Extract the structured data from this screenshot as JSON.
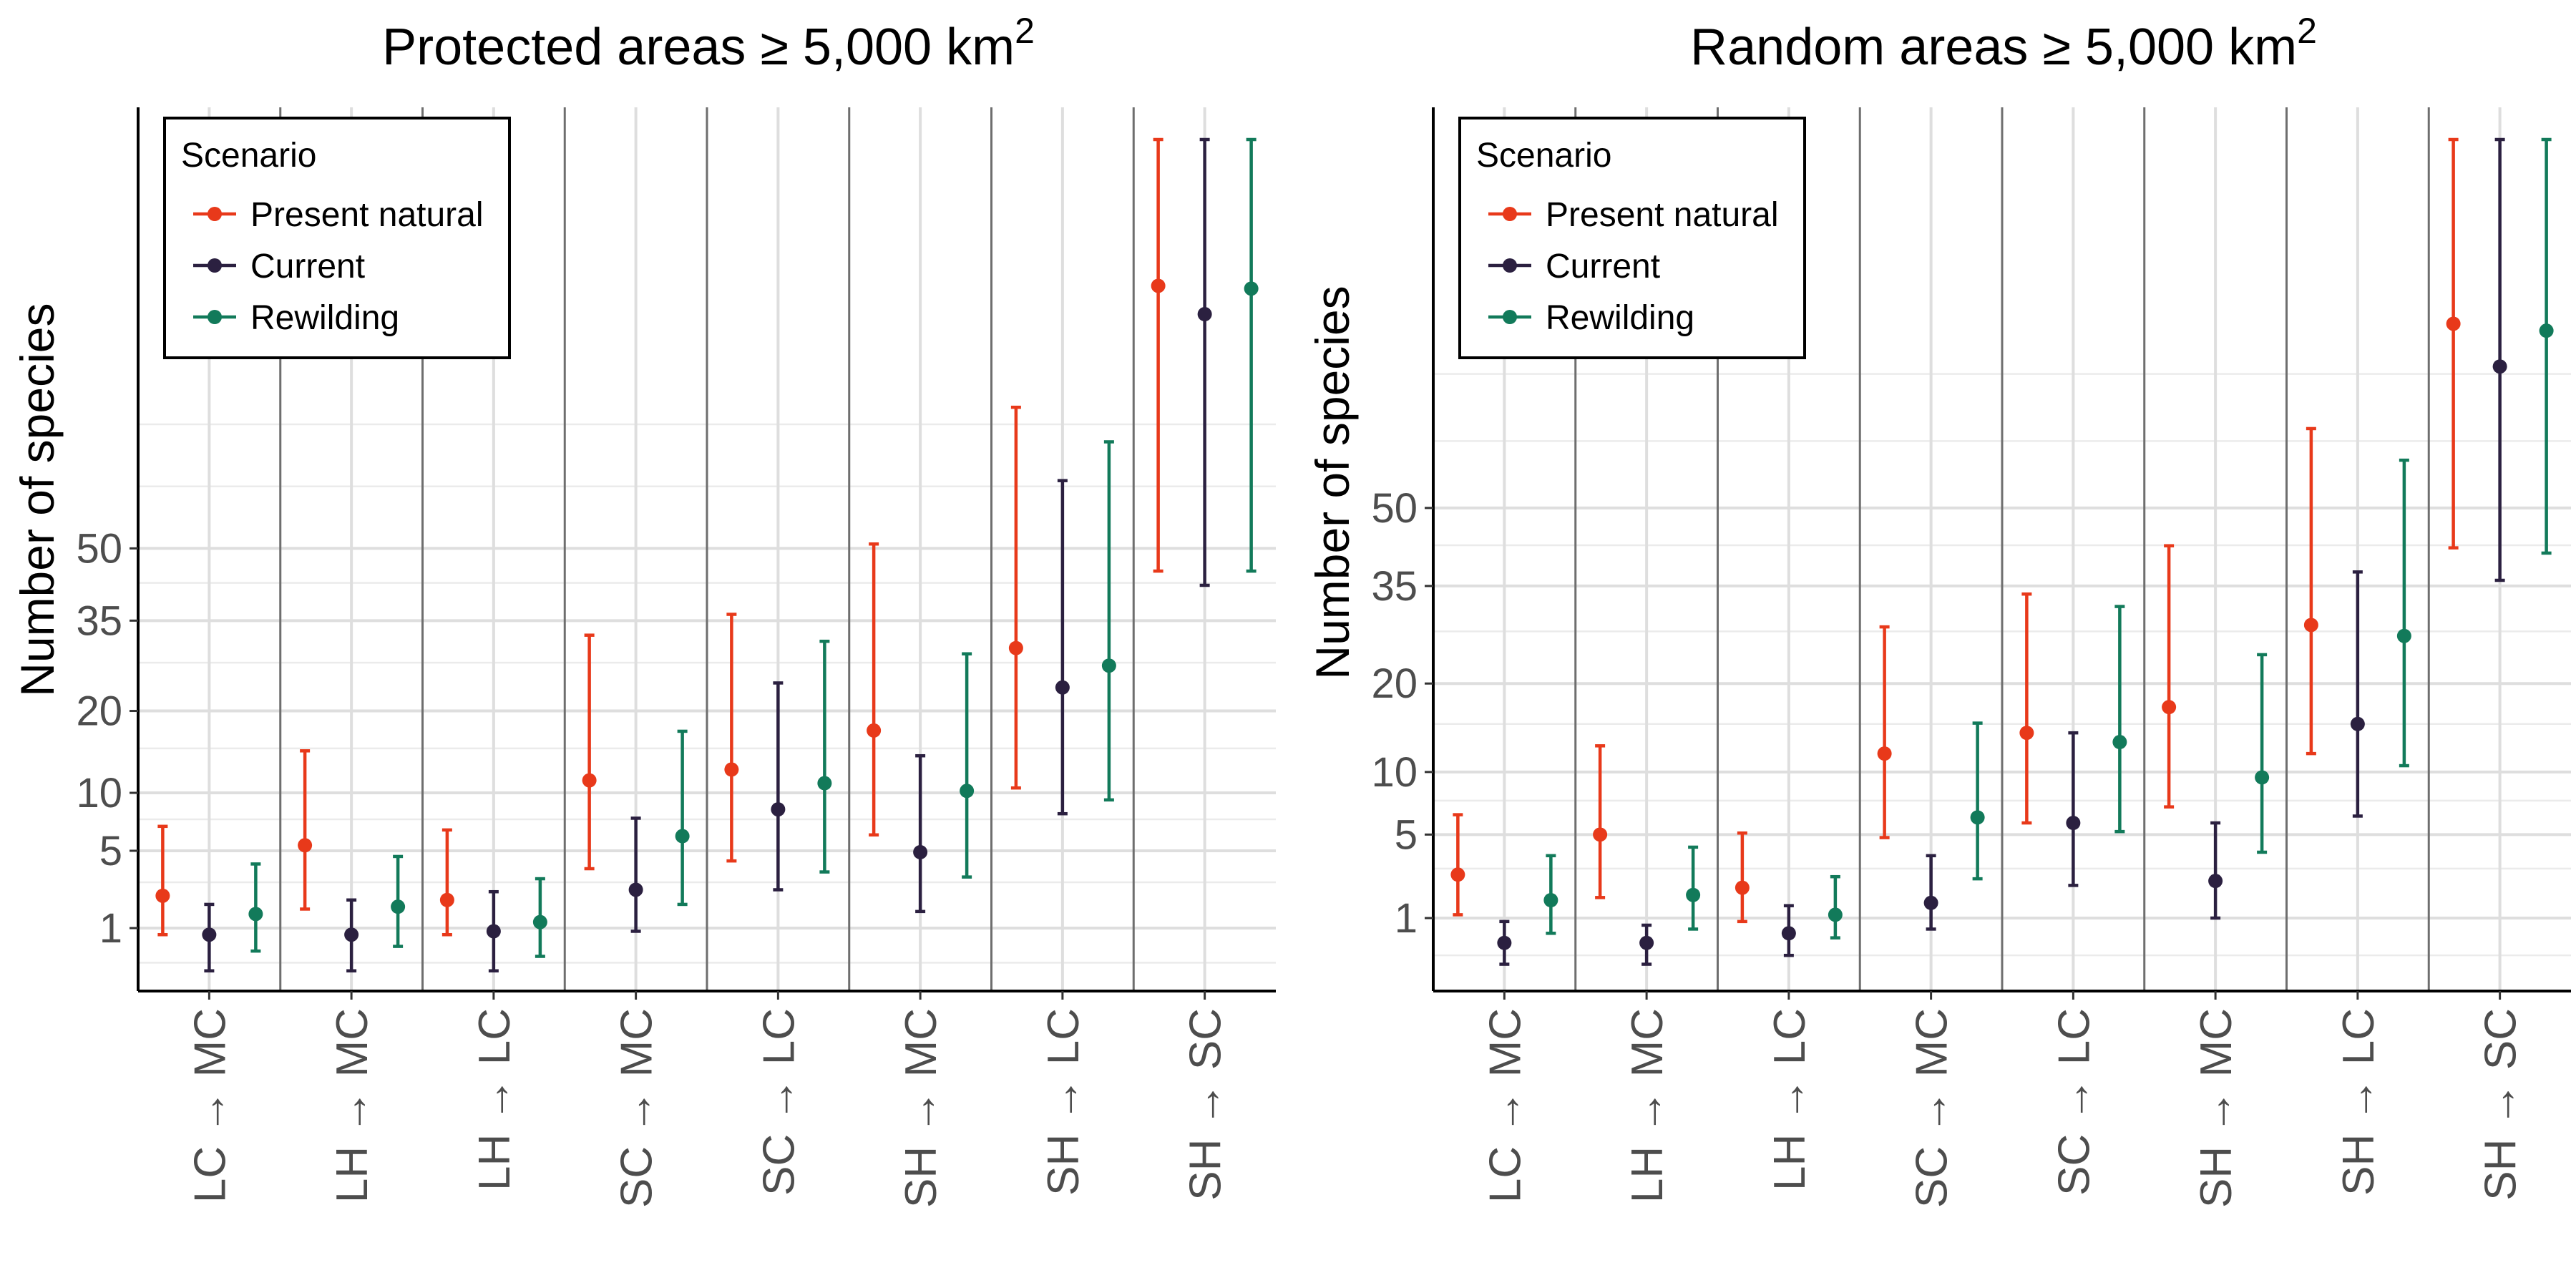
{
  "legend": {
    "title": "Scenario",
    "items": [
      {
        "name": "Present natural",
        "color": "#e8391a"
      },
      {
        "name": "Current",
        "color": "#2b2040"
      },
      {
        "name": "Rewilding",
        "color": "#127a5a"
      }
    ]
  },
  "chart_data": [
    {
      "type": "errorbar",
      "title": "Protected areas ≥ 5,000 km",
      "title_superscript": "2",
      "ylabel": "Number of species",
      "xlabel": "",
      "y_scale": "sqrt",
      "y_ticks": [
        1,
        5,
        10,
        20,
        35,
        50
      ],
      "grid": true,
      "legend_position": "top-left",
      "categories": [
        "LC → MC",
        "LH → MC",
        "LH → LC",
        "SC → MC",
        "SC → LC",
        "SH → MC",
        "SH → LC",
        "SH → SC"
      ],
      "series": [
        {
          "name": "Present natural",
          "color": "#e8391a",
          "values": [
            2.3,
            5.4,
            2.1,
            11.3,
            12.5,
            17.3,
            30.0,
            127.0
          ],
          "lower": [
            0.8,
            1.7,
            0.8,
            3.8,
            4.3,
            6.2,
            10.5,
            45.0
          ],
          "upper": [
            6.9,
            14.7,
            6.6,
            32.3,
            36.2,
            51.0,
            87.0,
            299.0
          ]
        },
        {
          "name": "Current",
          "color": "#2b2040",
          "values": [
            0.8,
            0.8,
            0.9,
            2.6,
            8.4,
            4.9,
            23.5,
            117.0
          ],
          "lower": [
            0.1,
            0.1,
            0.1,
            0.9,
            2.6,
            1.6,
            8.0,
            42.0
          ],
          "upper": [
            1.9,
            2.1,
            2.5,
            7.6,
            24.2,
            14.1,
            66.5,
            278.0
          ]
        },
        {
          "name": "Rewilding",
          "color": "#127a5a",
          "values": [
            1.5,
            1.8,
            1.2,
            6.1,
            11.0,
            10.2,
            27.0,
            126.0
          ],
          "lower": [
            0.4,
            0.5,
            0.3,
            1.9,
            3.6,
            3.3,
            9.3,
            45.0
          ],
          "upper": [
            4.1,
            4.6,
            3.2,
            17.2,
            31.2,
            29.0,
            77.0,
            295.0
          ]
        }
      ]
    },
    {
      "type": "errorbar",
      "title": "Random areas ≥ 5,000 km",
      "title_superscript": "2",
      "ylabel": "Number of species",
      "xlabel": "",
      "y_scale": "sqrt",
      "y_ticks": [
        1,
        5,
        10,
        20,
        35,
        50
      ],
      "grid": true,
      "legend_position": "top-left",
      "categories": [
        "LC → MC",
        "LH → MC",
        "LH → LC",
        "SC → MC",
        "SC → LC",
        "SH → MC",
        "SH → LC",
        "SH → SC"
      ],
      "series": [
        {
          "name": "Present natural",
          "color": "#e8391a",
          "values": [
            2.7,
            5.0,
            2.1,
            11.8,
            14.0,
            17.0,
            28.5,
            96.0
          ],
          "lower": [
            1.1,
            1.7,
            0.9,
            4.8,
            5.8,
            7.0,
            11.8,
            42.0
          ],
          "upper": [
            6.4,
            12.6,
            5.1,
            28.2,
            33.6,
            42.4,
            68.0,
            200.0
          ]
        },
        {
          "name": "Current",
          "color": "#2b2040",
          "values": [
            0.4,
            0.4,
            0.6,
            1.5,
            5.8,
            2.4,
            15.0,
            84.0
          ],
          "lower": [
            0.1,
            0.1,
            0.2,
            0.7,
            2.2,
            1.0,
            6.3,
            36.0
          ],
          "upper": [
            0.9,
            0.8,
            1.4,
            3.7,
            14.0,
            5.8,
            37.5,
            181.0
          ]
        },
        {
          "name": "Rewilding",
          "color": "#127a5a",
          "values": [
            1.6,
            1.8,
            1.1,
            6.2,
            13.0,
            9.5,
            26.8,
            94.0
          ],
          "lower": [
            0.6,
            0.7,
            0.5,
            2.5,
            5.2,
            3.9,
            10.6,
            41.0
          ],
          "upper": [
            3.7,
            4.2,
            2.6,
            15.1,
            31.5,
            24.0,
            60.5,
            192.0
          ]
        }
      ]
    }
  ]
}
